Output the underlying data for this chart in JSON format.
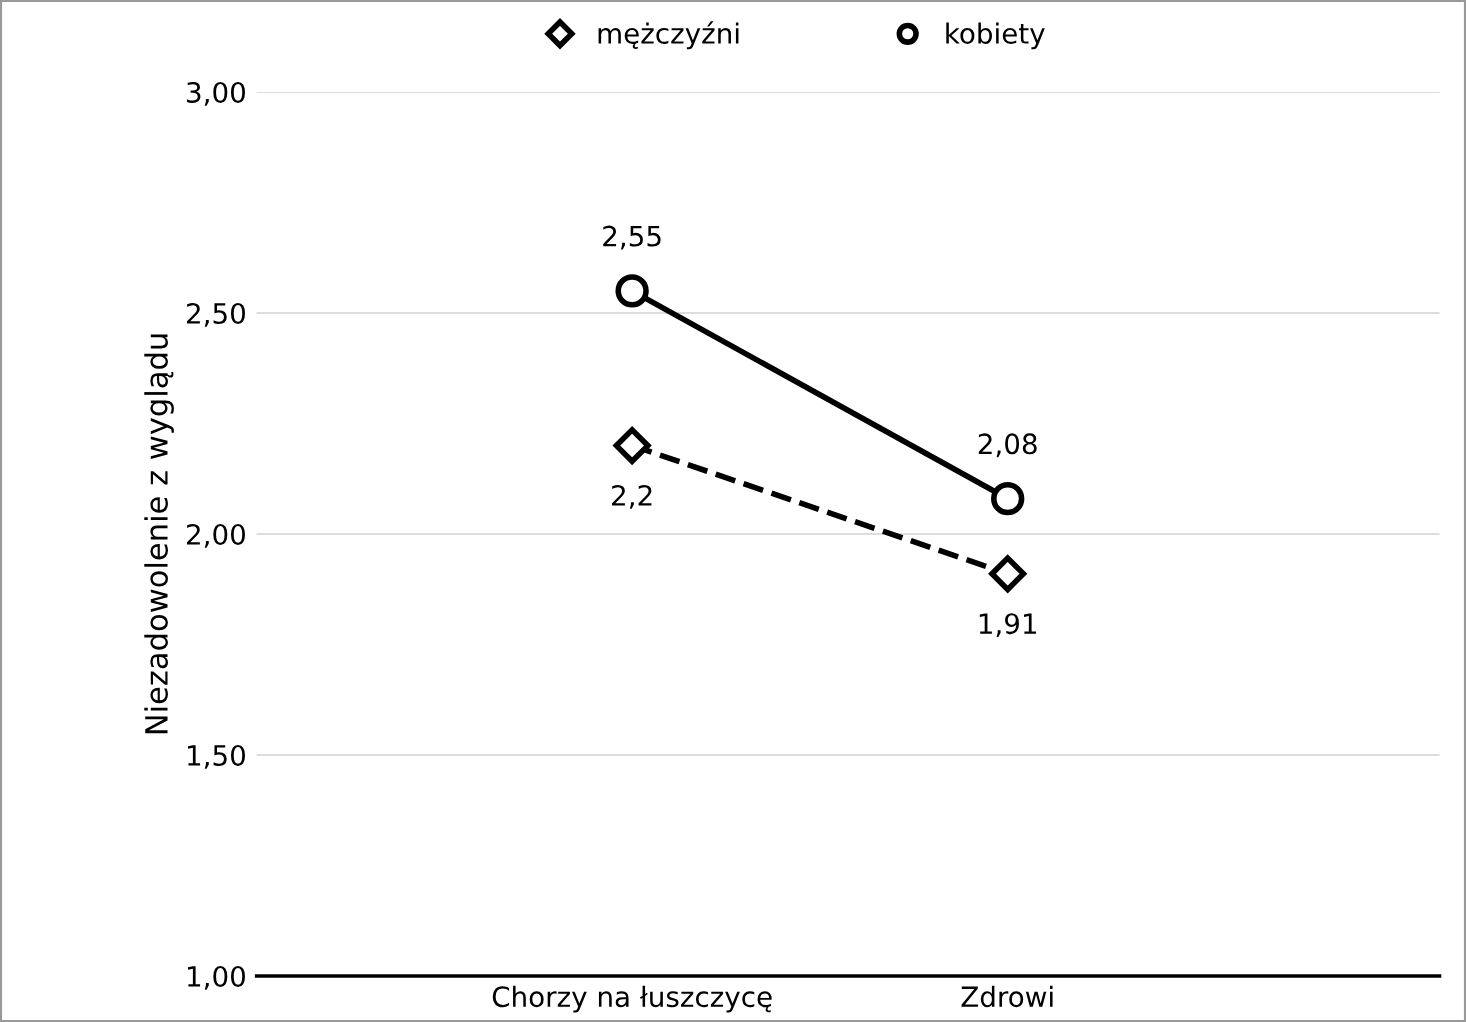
{
  "chart_data": {
    "type": "line",
    "ylabel": "Niezadowolenie z wyglądu",
    "categories": [
      "Chorzy na łuszczycę",
      "Zdrowi"
    ],
    "series": [
      {
        "name": "mężczyźni",
        "color": "#000000",
        "values": [
          2.2,
          1.91
        ],
        "marker": "diamond",
        "line_style": "dashed",
        "value_labels": [
          "2,2",
          "1,91"
        ]
      },
      {
        "name": "kobiety",
        "color": "#000000",
        "values": [
          2.55,
          2.08
        ],
        "marker": "circle",
        "line_style": "solid",
        "value_labels": [
          "2,55",
          "2,08"
        ]
      }
    ],
    "ylim": [
      1,
      3
    ],
    "yticks": [
      {
        "value": 1,
        "label": "1,00"
      },
      {
        "value": 1.5,
        "label": "1,50"
      },
      {
        "value": 2,
        "label": "2,00"
      },
      {
        "value": 2.5,
        "label": "2,50"
      },
      {
        "value": 3,
        "label": "3,00"
      }
    ],
    "grid": "y",
    "legend": "top"
  }
}
